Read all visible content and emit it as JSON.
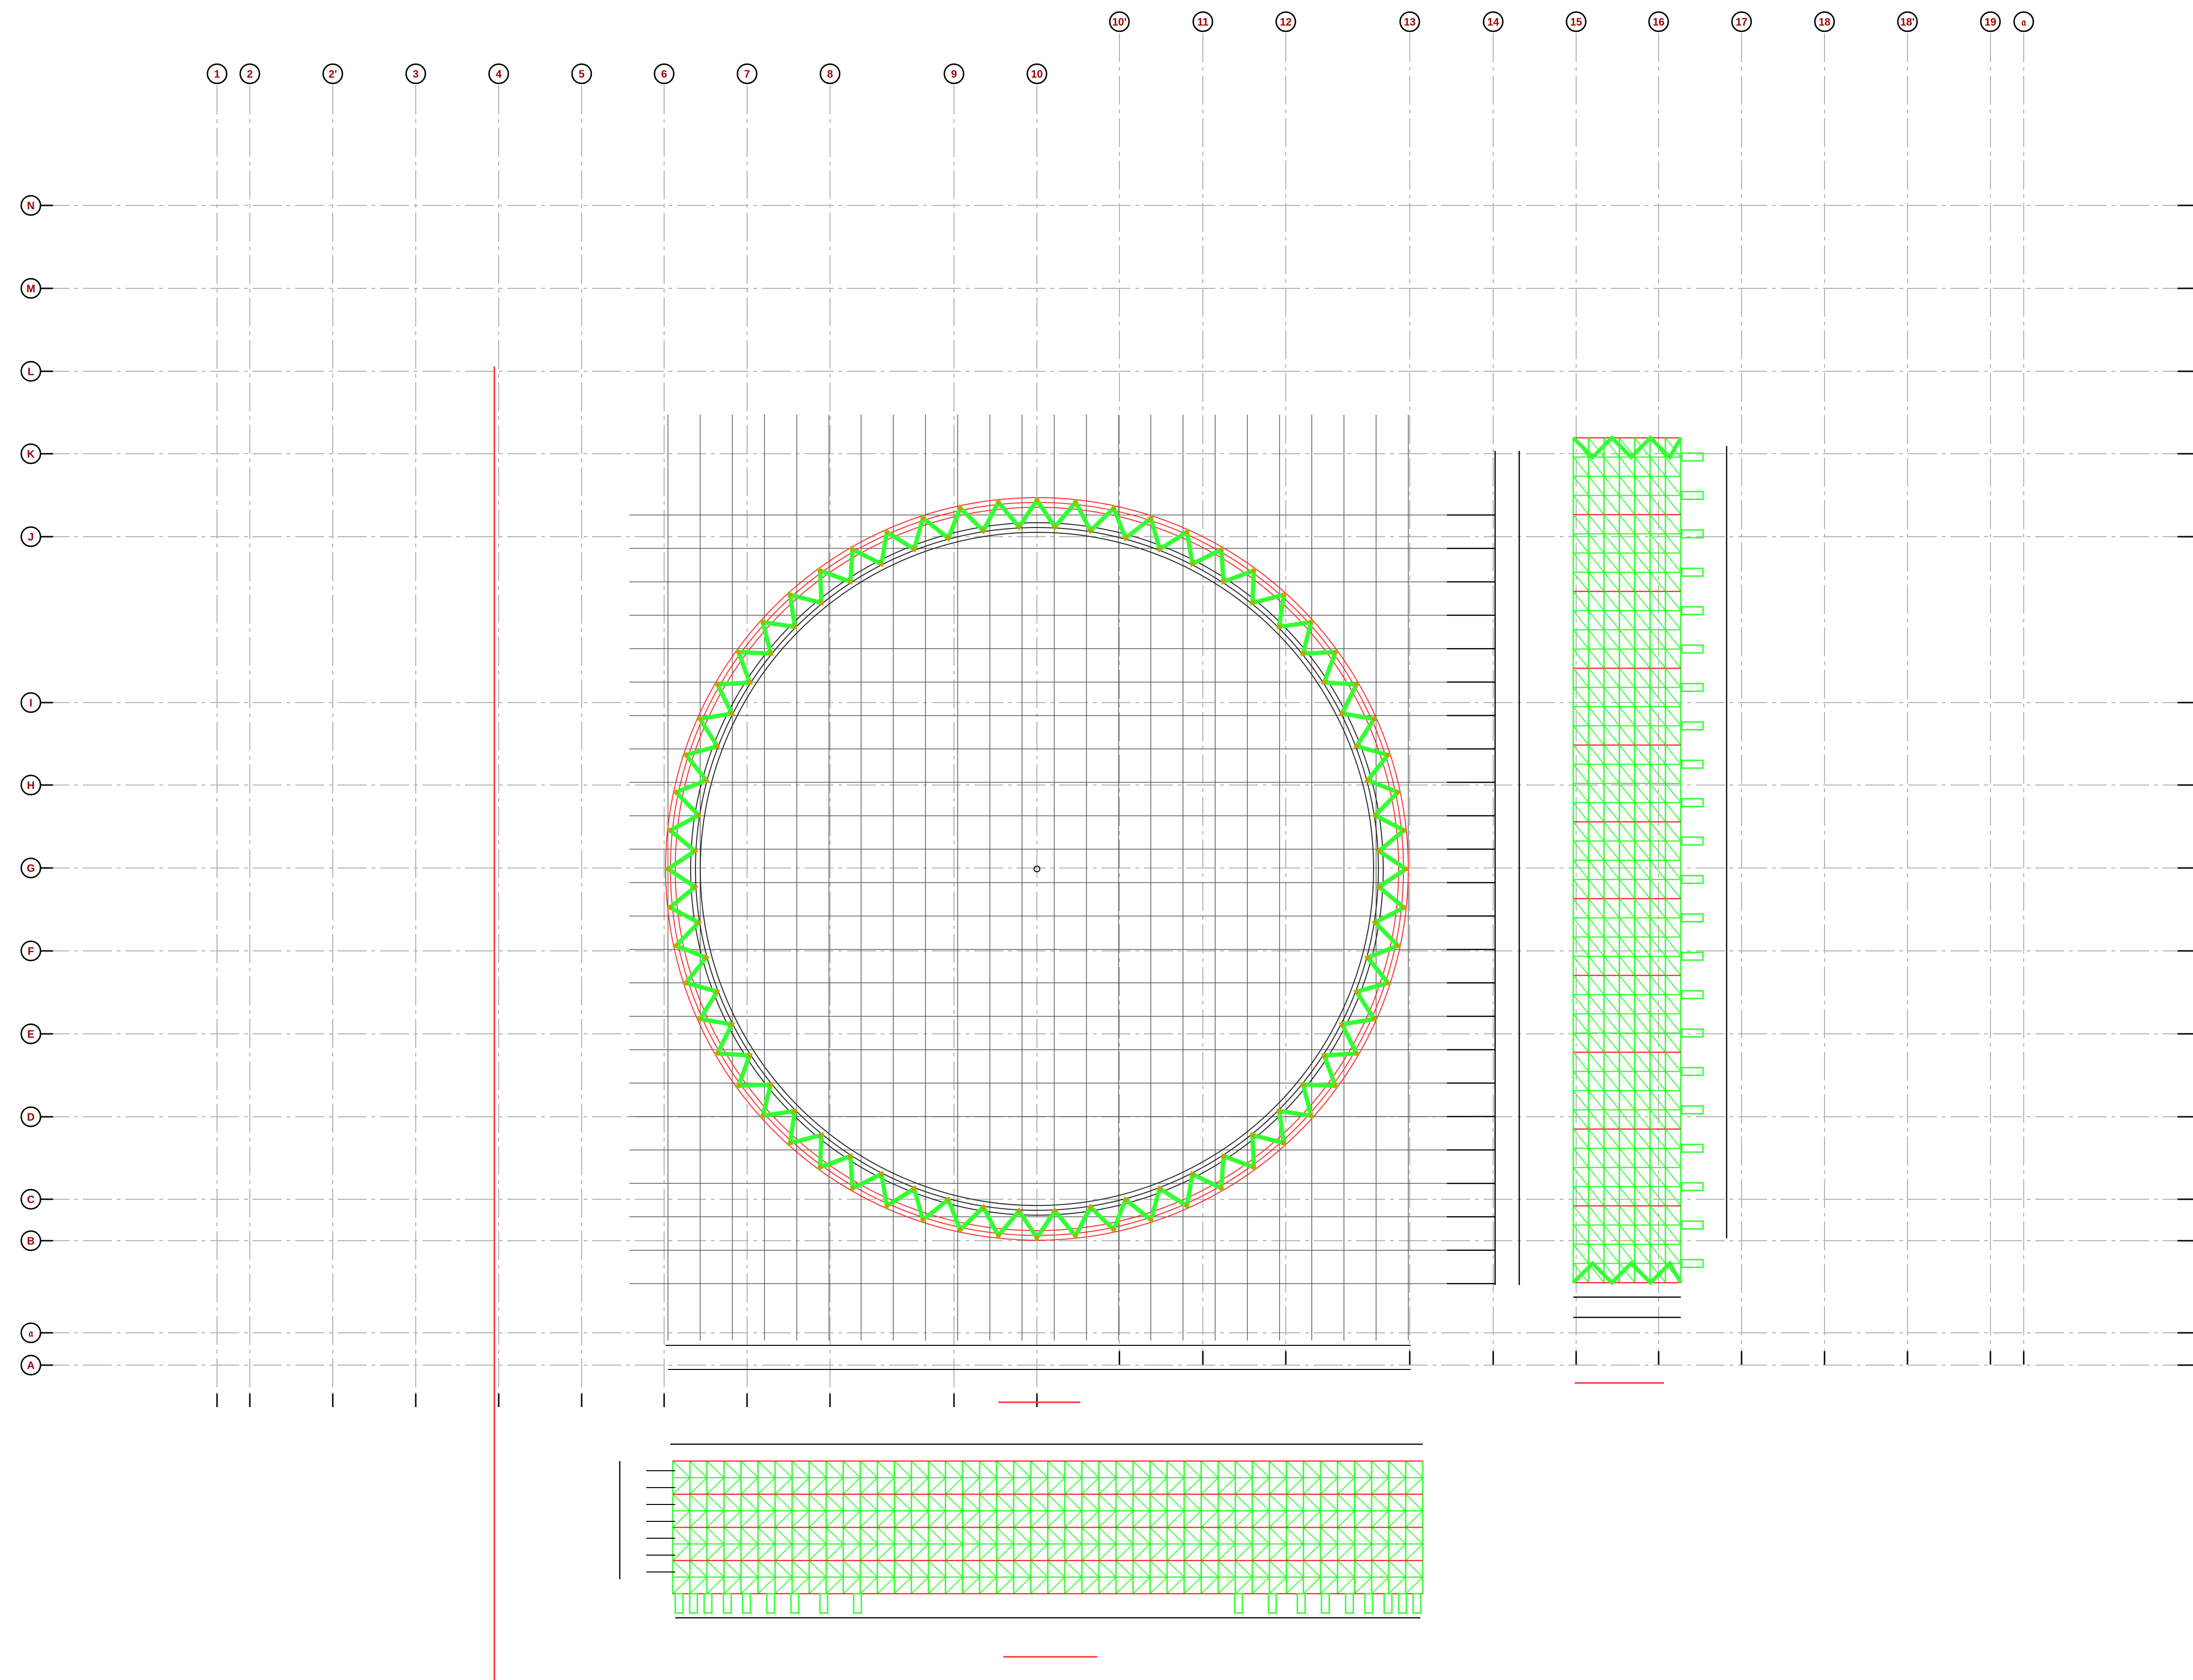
{
  "drawing": {
    "background": "#ffffff",
    "grid_line_color": "#b0b0b0",
    "bubble_text_color": "#9c0000",
    "truss_color": "#33ff33",
    "chord_color": "#ff2a2a",
    "dimension_color": "#000000",
    "column_grids": [
      {
        "label": "1",
        "row": "upper"
      },
      {
        "label": "2",
        "row": "upper"
      },
      {
        "label": "2'",
        "row": "upper"
      },
      {
        "label": "3",
        "row": "upper"
      },
      {
        "label": "4",
        "row": "upper"
      },
      {
        "label": "5",
        "row": "upper"
      },
      {
        "label": "6",
        "row": "upper"
      },
      {
        "label": "7",
        "row": "upper"
      },
      {
        "label": "8",
        "row": "upper"
      },
      {
        "label": "9",
        "row": "upper"
      },
      {
        "label": "10",
        "row": "upper"
      },
      {
        "label": "10'",
        "row": "top"
      },
      {
        "label": "11",
        "row": "top"
      },
      {
        "label": "12",
        "row": "top"
      },
      {
        "label": "13",
        "row": "top"
      },
      {
        "label": "14",
        "row": "top"
      },
      {
        "label": "15",
        "row": "top"
      },
      {
        "label": "16",
        "row": "top"
      },
      {
        "label": "17",
        "row": "top"
      },
      {
        "label": "18",
        "row": "top"
      },
      {
        "label": "18'",
        "row": "top"
      },
      {
        "label": "19",
        "row": "top"
      },
      {
        "label": "𝔞",
        "row": "top"
      }
    ],
    "row_grids": [
      "N",
      "M",
      "L",
      "K",
      "J",
      "I",
      "H",
      "G",
      "F",
      "E",
      "D",
      "C",
      "B",
      "𝔞",
      "A"
    ],
    "views": [
      "ring-plan",
      "side-elevation",
      "front-elevation"
    ]
  }
}
